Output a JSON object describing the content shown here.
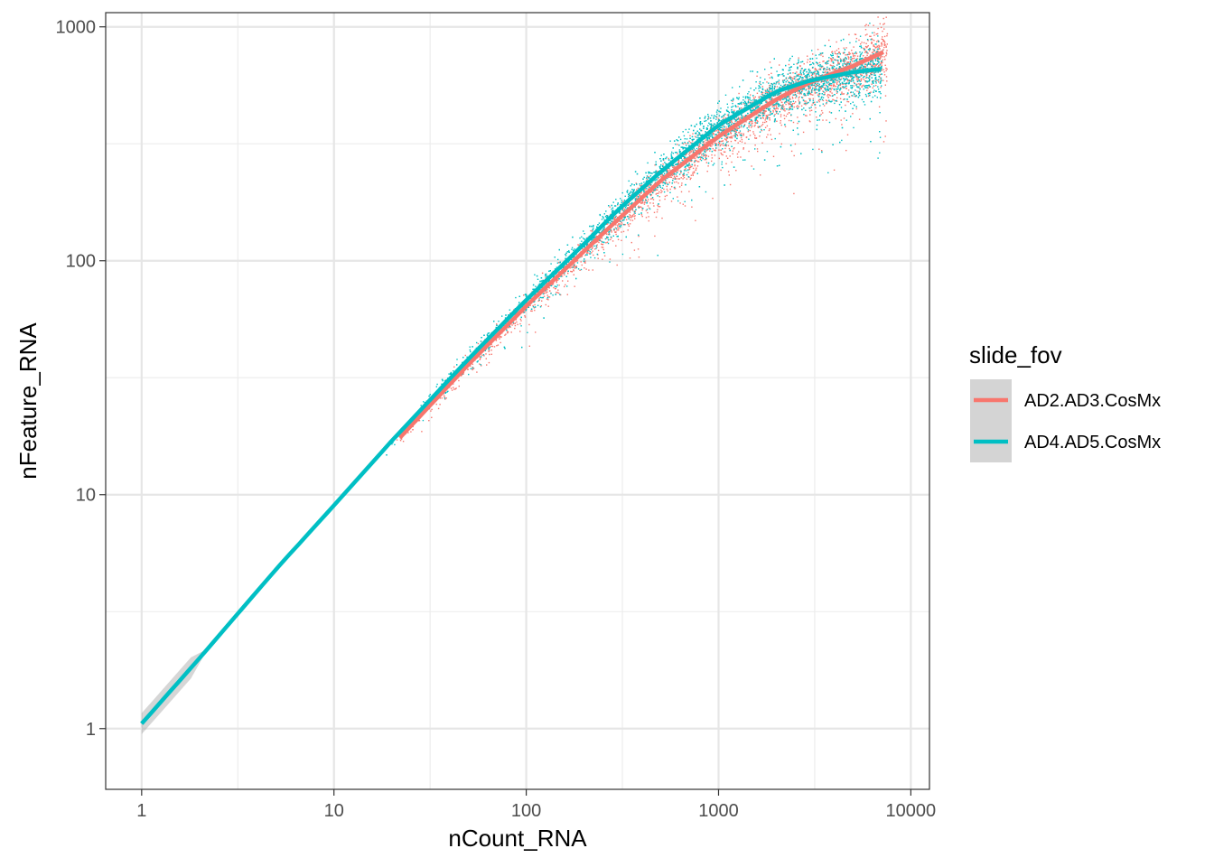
{
  "chart_data": {
    "type": "scatter",
    "xlabel": "nCount_RNA",
    "ylabel": "nFeature_RNA",
    "x_scale": "log10",
    "y_scale": "log10",
    "xlim": [
      0.65,
      12500
    ],
    "ylim": [
      0.55,
      1150
    ],
    "x_ticks": [
      1,
      10,
      100,
      1000,
      10000
    ],
    "x_tick_labels": [
      "1",
      "10",
      "100",
      "1000",
      "10000"
    ],
    "y_ticks": [
      1,
      10,
      100,
      1000
    ],
    "y_tick_labels": [
      "1",
      "10",
      "100",
      "1000"
    ],
    "grid": true,
    "legend": {
      "title": "slide_fov",
      "position": "right"
    },
    "series": [
      {
        "name": "AD2.AD3.CosMx",
        "color": "#F8766D",
        "point_x_range": [
          20,
          7500
        ],
        "smooth_fit": {
          "x": [
            22,
            30,
            50,
            100,
            200,
            300,
            500,
            1000,
            2000,
            3000,
            5000,
            7200
          ],
          "y": [
            17.5,
            23,
            36,
            64,
            110,
            150,
            220,
            340,
            490,
            580,
            680,
            780
          ]
        }
      },
      {
        "name": "AD4.AD5.CosMx",
        "color": "#00BFC4",
        "point_x_range": [
          1,
          7000
        ],
        "smooth_fit": {
          "x": [
            1,
            2,
            5,
            10,
            20,
            50,
            100,
            200,
            300,
            500,
            1000,
            2000,
            3000,
            5000,
            7000
          ],
          "y": [
            1.05,
            2,
            4.8,
            9,
            17,
            38,
            68,
            118,
            165,
            240,
            380,
            530,
            590,
            640,
            660
          ]
        }
      }
    ]
  }
}
